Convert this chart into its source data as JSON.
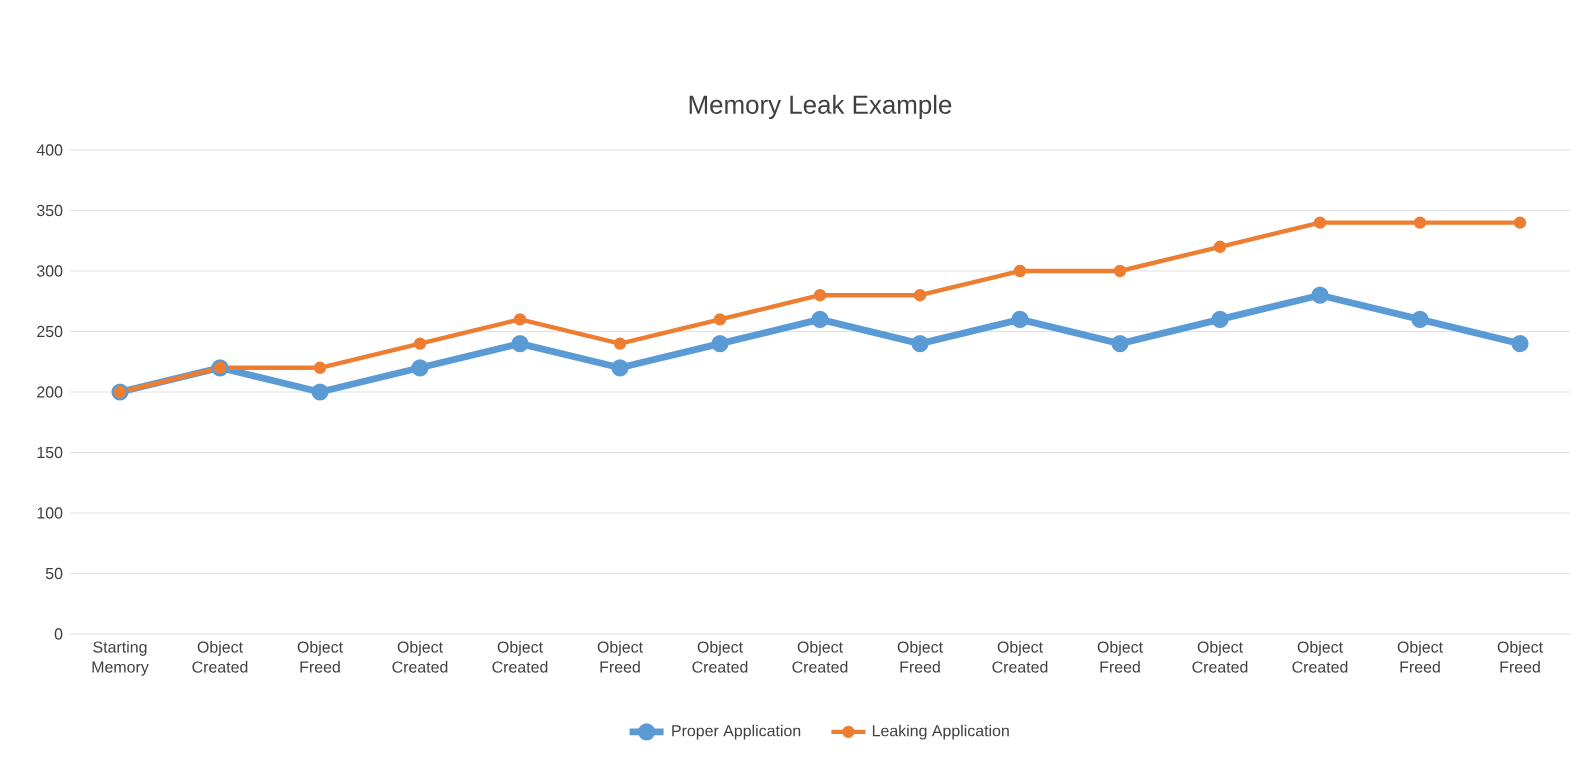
{
  "chart_data": {
    "type": "line",
    "title": "Memory Leak Example",
    "categories": [
      "Starting Memory",
      "Object Created",
      "Object Freed",
      "Object Created",
      "Object Created",
      "Object Freed",
      "Object Created",
      "Object Created",
      "Object Freed",
      "Object Created",
      "Object Freed",
      "Object Created",
      "Object Created",
      "Object Freed",
      "Object Freed"
    ],
    "series": [
      {
        "name": "Proper Application",
        "color": "#5b9bd5",
        "values": [
          200,
          220,
          200,
          220,
          240,
          220,
          240,
          260,
          240,
          260,
          240,
          260,
          280,
          260,
          240
        ]
      },
      {
        "name": "Leaking Application",
        "color": "#ed7d31",
        "values": [
          200,
          220,
          220,
          240,
          260,
          240,
          260,
          280,
          280,
          300,
          300,
          320,
          340,
          340,
          340
        ]
      }
    ],
    "ylim": [
      0,
      400
    ],
    "yticks": [
      0,
      50,
      100,
      150,
      200,
      250,
      300,
      350,
      400
    ],
    "grid": "y",
    "legend": "bottom",
    "marker": "circle",
    "line_style": "solid"
  }
}
